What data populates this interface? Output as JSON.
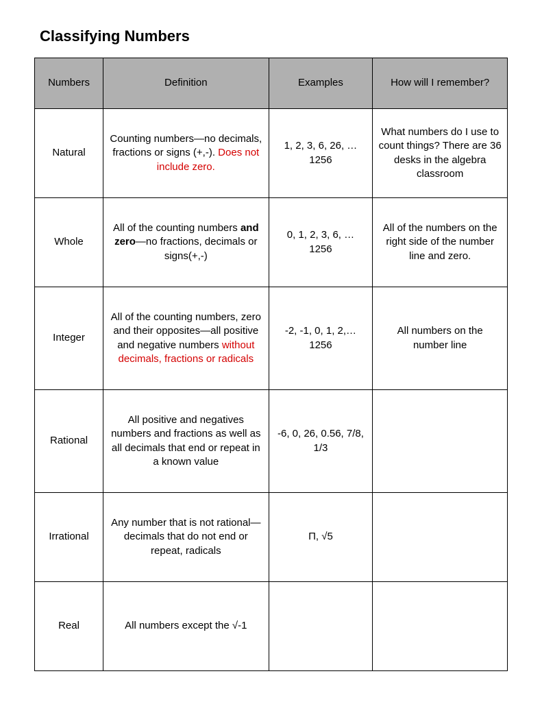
{
  "title": "Classifying Numbers",
  "columns": [
    "Numbers",
    "Definition",
    "Examples",
    "How will I remember?"
  ],
  "rows": [
    {
      "name": "Natural",
      "def_pre": "Counting numbers—no decimals, fractions or signs (+,-).  ",
      "def_red": "Does not include zero.",
      "examples": "1, 2, 3, 6, 26, … 1256",
      "remember": "What numbers do I use to count things? There are 36 desks in the algebra classroom"
    },
    {
      "name": "Whole",
      "def_pre": "All of the counting numbers ",
      "def_bold": "and zero",
      "def_post": "—no fractions, decimals or signs(+,-)",
      "examples": "0, 1, 2, 3, 6, … 1256",
      "remember": "All of the numbers on the right side of the number line and zero."
    },
    {
      "name": "Integer",
      "def_pre": "All of the counting numbers, zero and their opposites—all positive and negative numbers ",
      "def_red": "without decimals, fractions or radicals",
      "examples": "-2, -1, 0, 1, 2,… 1256",
      "remember": "All numbers on the number line"
    },
    {
      "name": "Rational",
      "def_pre": "All positive and negatives numbers and fractions as well as all decimals that end or repeat in a known value",
      "examples": "-6, 0, 26, 0.56, 7/8, 1/3",
      "remember": ""
    },
    {
      "name": "Irrational",
      "def_pre": "Any number that is not rational—decimals that do not end or repeat, radicals",
      "examples": "Π, √5",
      "remember": ""
    },
    {
      "name": "Real",
      "def_pre": "All numbers except the √-1",
      "examples": "",
      "remember": ""
    }
  ]
}
